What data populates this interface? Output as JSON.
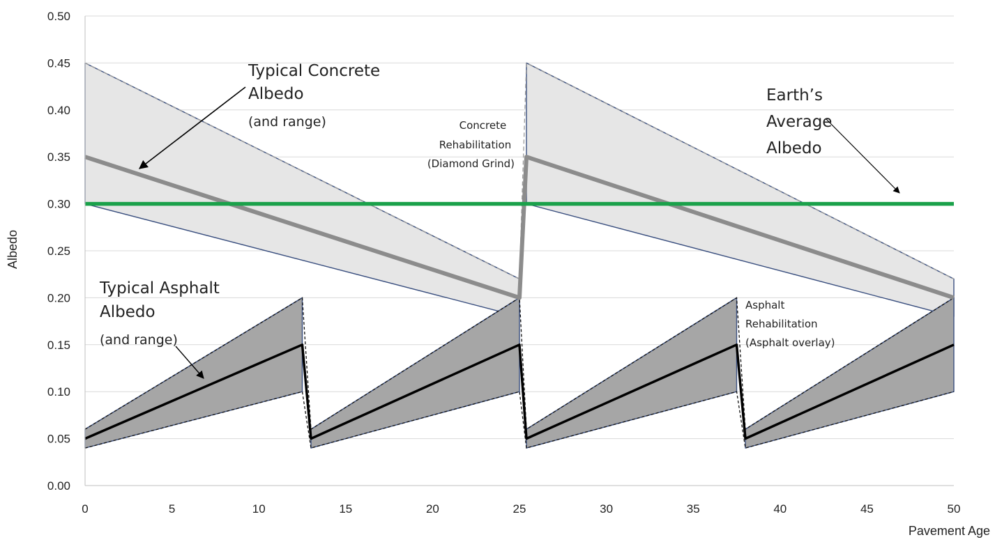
{
  "chart_data": {
    "type": "area",
    "xlabel": "Pavement Age",
    "ylabel": "Albedo",
    "xlim": [
      0,
      50
    ],
    "ylim": [
      0,
      0.5
    ],
    "x_ticks": [
      0,
      5,
      10,
      15,
      20,
      25,
      30,
      35,
      40,
      45,
      50
    ],
    "y_ticks": [
      "0.00",
      "0.05",
      "0.10",
      "0.15",
      "0.20",
      "0.25",
      "0.30",
      "0.35",
      "0.40",
      "0.45",
      "0.50"
    ],
    "grid": "horizontal",
    "colors": {
      "concrete_fill": "#e6e6e6",
      "concrete_line": "#8c8c8c",
      "band_edge": "#3a4f7f",
      "asphalt_fill": "#a6a6a6",
      "asphalt_line": "#000000",
      "earth_line": "#1aa14a"
    },
    "series": [
      {
        "x": [
          0,
          25,
          25.4,
          50
        ],
        "y": [
          0.35,
          0.2,
          0.35,
          0.2
        ]
      },
      {
        "x": [
          0,
          25,
          25.4,
          50
        ],
        "y": [
          0.45,
          0.22,
          0.45,
          0.22
        ]
      },
      {
        "x": [
          0,
          25,
          25.4,
          50
        ],
        "y": [
          0.3,
          0.18,
          0.3,
          0.18
        ]
      },
      {
        "x": [
          0,
          12.5,
          13,
          25,
          25.4,
          37.5,
          38,
          50
        ],
        "y": [
          0.05,
          0.15,
          0.05,
          0.15,
          0.05,
          0.15,
          0.05,
          0.15
        ]
      },
      {
        "x": [
          0,
          12.5,
          13,
          25,
          25.4,
          37.5,
          38,
          50
        ],
        "y": [
          0.06,
          0.2,
          0.06,
          0.2,
          0.06,
          0.2,
          0.06,
          0.2
        ]
      },
      {
        "x": [
          0,
          12.5,
          13,
          25,
          25.4,
          37.5,
          38,
          50
        ],
        "y": [
          0.04,
          0.1,
          0.04,
          0.1,
          0.04,
          0.1,
          0.04,
          0.1
        ]
      },
      {
        "x": [
          0,
          50
        ],
        "y": [
          0.3,
          0.3
        ]
      }
    ],
    "annotations": {
      "concrete": [
        "Typical Concrete",
        "Albedo",
        "(and range)"
      ],
      "asphalt": [
        "Typical Asphalt",
        "Albedo",
        "(and range)"
      ],
      "earth": [
        "Earth’s",
        "Average",
        "Albedo"
      ],
      "concrete_rehab": [
        "Concrete",
        "Rehabilitation",
        "(Diamond Grind)"
      ],
      "asphalt_rehab": [
        "Asphalt",
        "Rehabilitation",
        "(Asphalt overlay)"
      ]
    }
  }
}
